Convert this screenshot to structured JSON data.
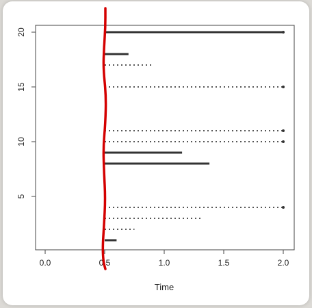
{
  "chart_data": {
    "type": "line",
    "title": "",
    "xlabel": "Time",
    "ylabel": "",
    "xlim": [
      0.0,
      2.0
    ],
    "ylim": [
      1,
      20
    ],
    "x_ticks": [
      "0.0",
      "0.5",
      "1.0",
      "1.5",
      "2.0"
    ],
    "y_ticks": [
      "5",
      "10",
      "15",
      "20"
    ],
    "segments": [
      {
        "y": 20,
        "x_start": 0.5,
        "x_end": 2.0,
        "style": "solid",
        "end_marker": true
      },
      {
        "y": 18,
        "x_start": 0.5,
        "x_end": 0.7,
        "style": "solid",
        "end_marker": false
      },
      {
        "y": 17,
        "x_start": 0.5,
        "x_end": 0.9,
        "style": "dotted",
        "end_marker": false
      },
      {
        "y": 15,
        "x_start": 0.5,
        "x_end": 2.0,
        "style": "dotted",
        "end_marker": true
      },
      {
        "y": 11,
        "x_start": 0.5,
        "x_end": 2.0,
        "style": "dotted",
        "end_marker": true
      },
      {
        "y": 10,
        "x_start": 0.5,
        "x_end": 2.0,
        "style": "dotted",
        "end_marker": true
      },
      {
        "y": 9,
        "x_start": 0.5,
        "x_end": 1.15,
        "style": "solid",
        "end_marker": false
      },
      {
        "y": 8,
        "x_start": 0.5,
        "x_end": 1.38,
        "style": "solid",
        "end_marker": false
      },
      {
        "y": 4,
        "x_start": 0.5,
        "x_end": 2.0,
        "style": "dotted",
        "end_marker": true
      },
      {
        "y": 3,
        "x_start": 0.5,
        "x_end": 1.32,
        "style": "dotted",
        "end_marker": false
      },
      {
        "y": 2,
        "x_start": 0.5,
        "x_end": 0.75,
        "style": "dotted",
        "end_marker": false
      },
      {
        "y": 1,
        "x_start": 0.5,
        "x_end": 0.6,
        "style": "solid",
        "end_marker": false
      }
    ],
    "annotation": {
      "kind": "freehand-vertical-line",
      "x": 0.5,
      "color": "#d40000"
    },
    "grid": false,
    "colors": {
      "solid": "#333333",
      "dotted": "#555555",
      "annotation": "#d40000"
    }
  }
}
